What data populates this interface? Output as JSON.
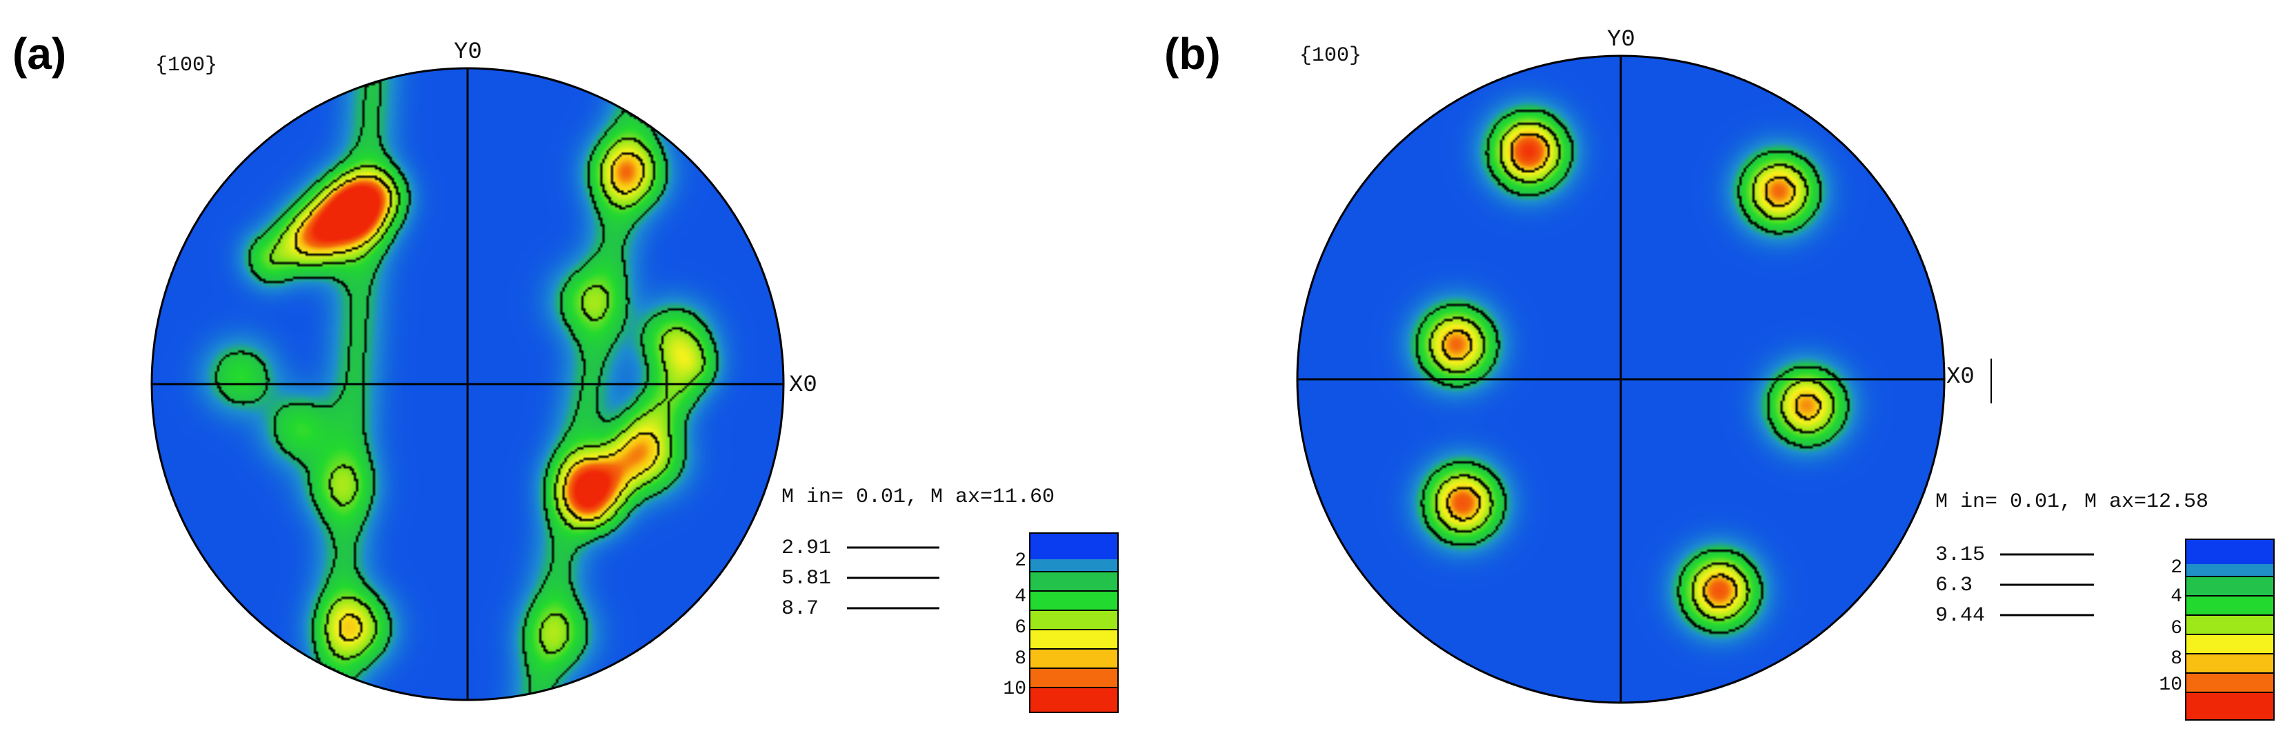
{
  "panels": [
    {
      "label": "(a)",
      "plane": "{100}",
      "y_axis_label": "Y0",
      "x_axis_label": "X0",
      "minmax": "M in= 0.01, M ax=11.60",
      "contour_levels": [
        "2.91",
        "5.81",
        "8.7"
      ],
      "colorbar_ticks": [
        "2",
        "4",
        "6",
        "8",
        "10"
      ],
      "poles": [
        {
          "az": 123,
          "r": 0.66,
          "v": 10.5
        },
        {
          "az": 135,
          "r": 0.66,
          "v": 6.0
        },
        {
          "az": 53,
          "r": 0.84,
          "v": 8.0
        },
        {
          "az": 35,
          "r": 0.46,
          "v": 4.0
        },
        {
          "az": 12,
          "r": 0.67,
          "v": 5.5
        },
        {
          "az": 178,
          "r": 0.72,
          "v": 4.0
        },
        {
          "az": 195,
          "r": 0.55,
          "v": 4.0
        },
        {
          "az": 218,
          "r": 0.52,
          "v": 3.8
        },
        {
          "az": 245,
          "r": 0.85,
          "v": 7.0
        },
        {
          "az": 320,
          "r": 0.5,
          "v": 9.0
        },
        {
          "az": 338,
          "r": 0.62,
          "v": 6.0
        },
        {
          "az": 290,
          "r": 0.84,
          "v": 4.0
        }
      ],
      "bands": [
        {
          "a": [
            -0.42,
            -1.0
          ],
          "b": [
            -0.3,
            1.0
          ],
          "v": 2.5
        },
        {
          "a": [
            0.22,
            -1.0
          ],
          "b": [
            0.55,
            1.0
          ],
          "v": 2.5
        },
        {
          "a": [
            -0.62,
            0.4
          ],
          "b": [
            -0.28,
            0.6
          ],
          "v": 4.8
        },
        {
          "a": [
            0.7,
            0.05
          ],
          "b": [
            0.4,
            -0.38
          ],
          "v": 4.8
        }
      ]
    },
    {
      "label": "(b)",
      "plane": "{100}",
      "y_axis_label": "Y0",
      "x_axis_label": "X0",
      "minmax": "M in= 0.01, M ax=12.58",
      "contour_levels": [
        "3.15",
        "6.3",
        "9.44"
      ],
      "colorbar_ticks": [
        "2",
        "4",
        "6",
        "8",
        "10"
      ],
      "poles": [
        {
          "az": 112,
          "r": 0.76,
          "v": 12.0
        },
        {
          "az": 50,
          "r": 0.76,
          "v": 10.5
        },
        {
          "az": 168,
          "r": 0.52,
          "v": 10.5
        },
        {
          "az": 352,
          "r": 0.58,
          "v": 10.0
        },
        {
          "az": 218,
          "r": 0.62,
          "v": 11.0
        },
        {
          "az": 295,
          "r": 0.72,
          "v": 11.0
        }
      ],
      "bands": []
    }
  ],
  "colors": {
    "background": "#0a3cf0",
    "scale": [
      "#0a3cf0",
      "#1f8fc8",
      "#22c24b",
      "#22d92f",
      "#9ee81a",
      "#f6f21c",
      "#f9c011",
      "#f46a0c",
      "#f02707"
    ]
  }
}
